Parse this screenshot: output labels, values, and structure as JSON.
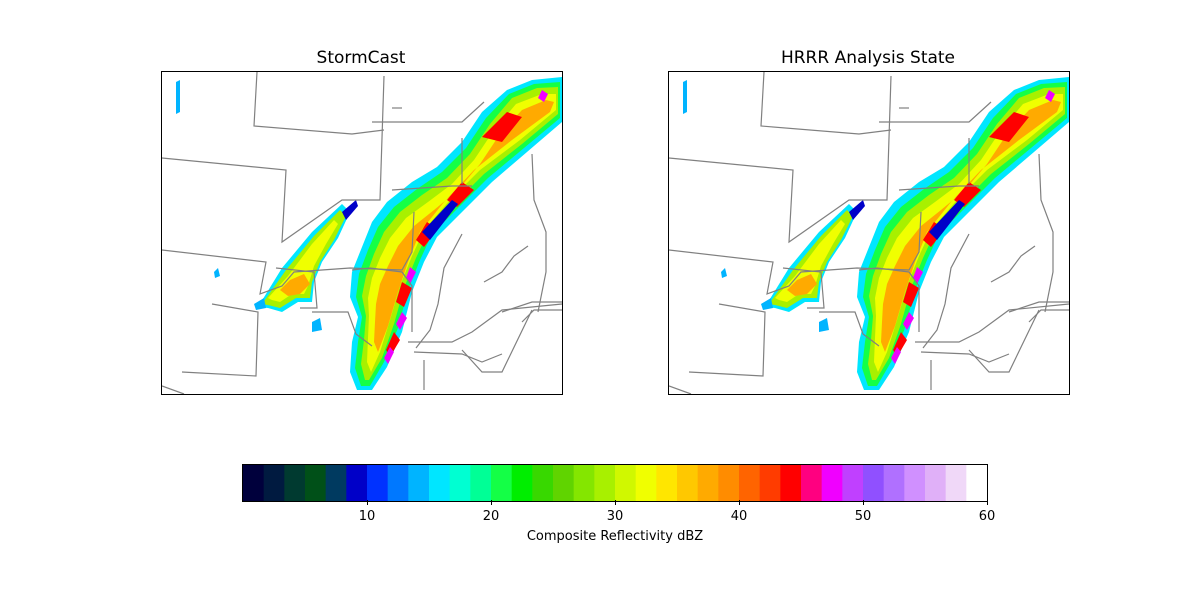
{
  "panels": [
    {
      "title": "StormCast"
    },
    {
      "title": "HRRR Analysis State"
    }
  ],
  "colorbar": {
    "label": "Composite Reflectivity dBZ",
    "range": [
      0,
      60
    ],
    "ticks": [
      "10",
      "20",
      "30",
      "40",
      "50",
      "60"
    ],
    "colors": [
      "#00003c",
      "#001a40",
      "#003a30",
      "#005018",
      "#003a60",
      "#0000c8",
      "#0032ff",
      "#0078ff",
      "#00b4ff",
      "#00e6ff",
      "#00ffd2",
      "#00ff96",
      "#14ff46",
      "#00ee00",
      "#38d800",
      "#60d400",
      "#84e600",
      "#a8f000",
      "#d0f800",
      "#f0ff00",
      "#ffe600",
      "#ffc800",
      "#ffaa00",
      "#ff8c00",
      "#ff6400",
      "#ff3c00",
      "#ff0000",
      "#ff0080",
      "#f000ff",
      "#c040ff",
      "#9050ff",
      "#b070ff",
      "#d090ff",
      "#e0b0f8",
      "#f0d8f8",
      "#ffffff"
    ]
  },
  "legend_colors": {
    "state_border": "#808080",
    "frame": "#000000"
  }
}
